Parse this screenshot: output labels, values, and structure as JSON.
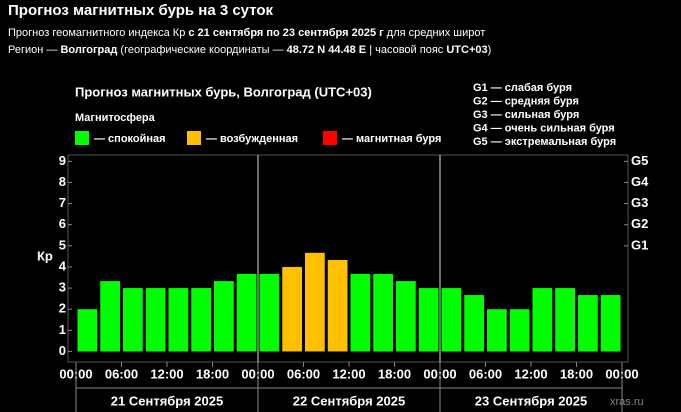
{
  "header": {
    "title": "Прогноз магнитных бурь на 3 суток",
    "lines": [
      [
        {
          "text": "Прогноз геомагнитного индекса Кр ",
          "bold": false
        },
        {
          "text": "с 21 сентября по 23 сентября 2025 г",
          "bold": true
        },
        {
          "text": " для средних широт",
          "bold": false
        }
      ],
      [
        {
          "text": "Регион — ",
          "bold": false
        },
        {
          "text": "Волгоград",
          "bold": true
        },
        {
          "text": " (географические координаты — ",
          "bold": false
        },
        {
          "text": "48.72 N 44.48 E",
          "bold": true
        },
        {
          "text": " | часовой пояс ",
          "bold": false
        },
        {
          "text": "UTC+03",
          "bold": true
        },
        {
          "text": ")",
          "bold": false
        }
      ]
    ]
  },
  "chart_data": {
    "type": "bar",
    "title": "Прогноз магнитных бурь, Волгоград (UTC+03)",
    "legend_title": "Магнитосфера",
    "ylabel": "Кр",
    "series": [
      {
        "name": "— спокойная",
        "color": "#00ff00",
        "values": [
          2,
          3.33,
          3,
          3,
          3,
          3,
          3.33,
          3.67,
          3.67,
          null,
          null,
          null,
          3.67,
          3.67,
          3.33,
          3,
          3,
          2.67,
          2,
          2,
          3,
          3,
          2.67,
          2.67
        ]
      },
      {
        "name": "— возбужденная",
        "color": "#ffc000",
        "values": [
          null,
          null,
          null,
          null,
          null,
          null,
          null,
          null,
          null,
          4,
          4.67,
          4.33,
          null,
          null,
          null,
          null,
          null,
          null,
          null,
          null,
          null,
          null,
          null,
          null
        ]
      },
      {
        "name": "— магнитная буря",
        "color": "#ff0000",
        "values": [
          null,
          null,
          null,
          null,
          null,
          null,
          null,
          null,
          null,
          null,
          null,
          null,
          null,
          null,
          null,
          null,
          null,
          null,
          null,
          null,
          null,
          null,
          null,
          null
        ]
      }
    ],
    "ylim": [
      -0.5,
      9.3
    ],
    "yticks": [
      0,
      1,
      2,
      3,
      4,
      5,
      6,
      7,
      8,
      9
    ],
    "y2lim": [
      -0.5,
      9.3
    ],
    "y2ticks": [
      {
        "value": 5,
        "label": "G1"
      },
      {
        "value": 6,
        "label": "G2"
      },
      {
        "value": 7,
        "label": "G3"
      },
      {
        "value": 8,
        "label": "G4"
      },
      {
        "value": 9,
        "label": "G5"
      }
    ],
    "xlim": [
      0,
      72
    ],
    "xticks": [
      {
        "value": 0,
        "label": "00:00"
      },
      {
        "value": 6,
        "label": "06:00"
      },
      {
        "value": 12,
        "label": "12:00"
      },
      {
        "value": 18,
        "label": "18:00"
      },
      {
        "value": 24,
        "label": "00:00"
      },
      {
        "value": 30,
        "label": "06:00"
      },
      {
        "value": 36,
        "label": "12:00"
      },
      {
        "value": 42,
        "label": "18:00"
      },
      {
        "value": 48,
        "label": "00:00"
      },
      {
        "value": 54,
        "label": "06:00"
      },
      {
        "value": 60,
        "label": "12:00"
      },
      {
        "value": 66,
        "label": "18:00"
      },
      {
        "value": 72,
        "label": "00:00"
      }
    ],
    "days": [
      "21 Сентября 2025",
      "22 Сентября 2025",
      "23 Сентября 2025"
    ],
    "g_scale": [
      "G1 — слабая буря",
      "G2 — средняя буря",
      "G3 — сильная буря",
      "G4 — очень сильная буря",
      "G5 — экстремальная буря"
    ],
    "watermark": "xras.ru"
  }
}
